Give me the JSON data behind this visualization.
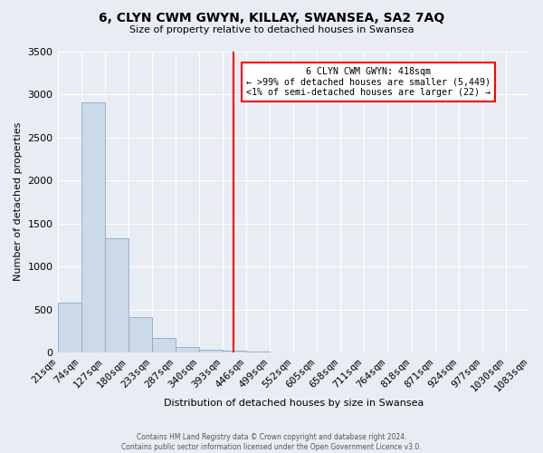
{
  "title": "6, CLYN CWM GWYN, KILLAY, SWANSEA, SA2 7AQ",
  "subtitle": "Size of property relative to detached houses in Swansea",
  "xlabel": "Distribution of detached houses by size in Swansea",
  "ylabel": "Number of detached properties",
  "bar_color": "#ccd9e8",
  "bar_edge_color": "#88aacc",
  "background_color": "#e8edf4",
  "grid_color": "#ffffff",
  "vline_x": 418,
  "vline_color": "red",
  "annotation_line1": "6 CLYN CWM GWYN: 418sqm",
  "annotation_line2": "← >99% of detached houses are smaller (5,449)",
  "annotation_line3": "<1% of semi-detached houses are larger (22) →",
  "annotation_box_color": "white",
  "annotation_box_edge_color": "red",
  "bins": [
    21,
    74,
    127,
    180,
    233,
    287,
    340,
    393,
    446,
    499,
    552,
    605,
    658,
    711,
    764,
    818,
    871,
    924,
    977,
    1030,
    1083
  ],
  "bin_labels": [
    "21sqm",
    "74sqm",
    "127sqm",
    "180sqm",
    "233sqm",
    "287sqm",
    "340sqm",
    "393sqm",
    "446sqm",
    "499sqm",
    "552sqm",
    "605sqm",
    "658sqm",
    "711sqm",
    "764sqm",
    "818sqm",
    "871sqm",
    "924sqm",
    "977sqm",
    "1030sqm",
    "1083sqm"
  ],
  "counts": [
    575,
    2910,
    1330,
    415,
    165,
    65,
    35,
    25,
    10,
    0,
    0,
    0,
    0,
    0,
    0,
    0,
    0,
    0,
    0,
    0
  ],
  "ylim": [
    0,
    3500
  ],
  "yticks": [
    0,
    500,
    1000,
    1500,
    2000,
    2500,
    3000,
    3500
  ],
  "footer_line1": "Contains HM Land Registry data © Crown copyright and database right 2024.",
  "footer_line2": "Contains public sector information licensed under the Open Government Licence v3.0."
}
